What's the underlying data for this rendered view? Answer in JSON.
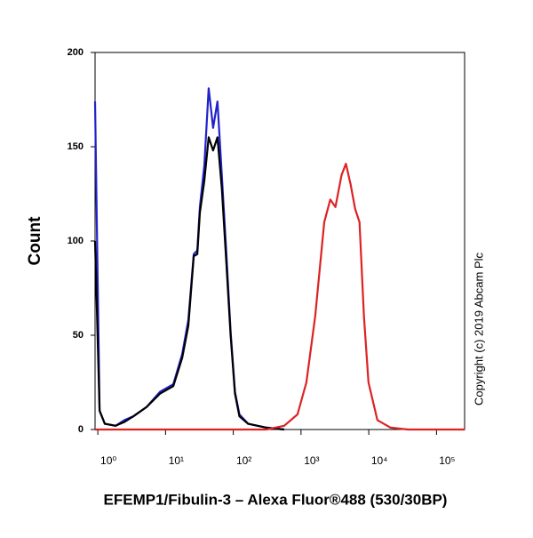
{
  "chart_data": {
    "type": "line",
    "ylabel": "Count",
    "xlabel": "EFEMP1/Fibulin-3 – Alexa Fluor®488 (530/30BP)",
    "annotation": "Copyright (c) 2019 Abcam Plc",
    "xscale": "log",
    "xlim": [
      0.91,
      260000
    ],
    "ylim": [
      0,
      200
    ],
    "xticks": [
      {
        "value": 1,
        "label": "10⁰"
      },
      {
        "value": 10,
        "label": "10¹"
      },
      {
        "value": 100,
        "label": "10²"
      },
      {
        "value": 1000,
        "label": "10³"
      },
      {
        "value": 10000,
        "label": "10⁴"
      },
      {
        "value": 100000,
        "label": "10⁵"
      }
    ],
    "yticks": [
      0,
      50,
      100,
      150,
      200
    ],
    "series": [
      {
        "color": "#2222cc",
        "x": [
          0.91,
          1.06,
          1.27,
          1.83,
          2.47,
          3.34,
          5.26,
          8.28,
          13,
          17.6,
          21.7,
          26.1,
          29.4,
          32.1,
          37.3,
          43.3,
          50.3,
          58.3,
          67.7,
          78.6,
          91.3,
          106,
          123,
          166,
          308,
          564
        ],
        "values": [
          174,
          10,
          3,
          2,
          5,
          7,
          12,
          20,
          24,
          40,
          58,
          93,
          95,
          118,
          140,
          181,
          160,
          174,
          135,
          95,
          52,
          20,
          8,
          3,
          1,
          0
        ]
      },
      {
        "color": "#000000",
        "x": [
          0.91,
          1.06,
          1.27,
          1.83,
          2.47,
          3.34,
          5.26,
          8.28,
          13,
          17.6,
          21.7,
          26.1,
          29.4,
          32.1,
          37.3,
          43.3,
          50.3,
          58.3,
          67.7,
          78.6,
          91.3,
          106,
          123,
          166,
          308,
          564
        ],
        "values": [
          100,
          10,
          3,
          2,
          4,
          7,
          12,
          19,
          23,
          38,
          55,
          92,
          93,
          115,
          132,
          155,
          148,
          155,
          128,
          90,
          50,
          19,
          7,
          3,
          1,
          0
        ]
      },
      {
        "color": "#dd2222",
        "x": [
          0.91,
          308,
          564,
          888,
          1200,
          1620,
          2200,
          2700,
          3220,
          3970,
          4600,
          5400,
          6300,
          7300,
          8500,
          9900,
          13400,
          21000,
          38000,
          260000
        ],
        "values": [
          0,
          0,
          2,
          8,
          25,
          60,
          110,
          122,
          118,
          135,
          141,
          130,
          117,
          110,
          60,
          25,
          5,
          1,
          0,
          0
        ]
      }
    ]
  }
}
